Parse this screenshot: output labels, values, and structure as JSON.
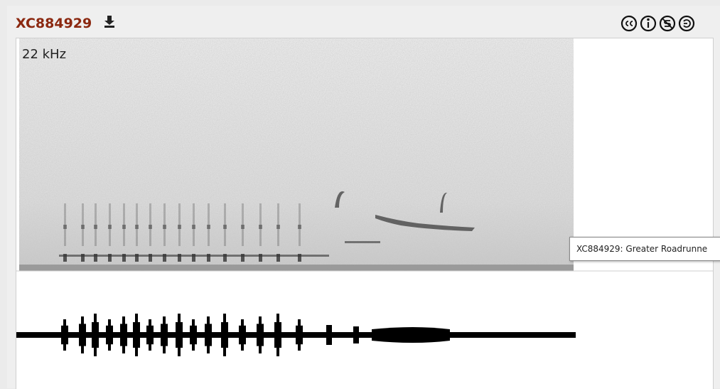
{
  "recording": {
    "id": "XC884929",
    "frequency_label": "22 kHz",
    "tooltip": "XC884929: Greater Roadrunne"
  }
}
